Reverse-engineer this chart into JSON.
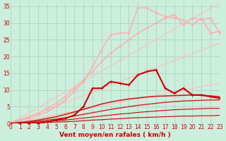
{
  "background_color": "#cceedd",
  "grid_color": "#aaccbb",
  "xlabel": "Vent moyen/en rafales ( km/h )",
  "xlabel_color": "#cc0000",
  "xlabel_fontsize": 6.5,
  "tick_color": "#cc0000",
  "tick_fontsize": 5.5,
  "xlim": [
    0,
    23
  ],
  "ylim": [
    0,
    36
  ],
  "yticks": [
    0,
    5,
    10,
    15,
    20,
    25,
    30,
    35
  ],
  "xticks": [
    0,
    1,
    2,
    3,
    4,
    5,
    6,
    7,
    8,
    9,
    10,
    11,
    12,
    13,
    14,
    15,
    16,
    17,
    18,
    19,
    20,
    21,
    22,
    23
  ],
  "series": [
    {
      "x": [
        0,
        1,
        2,
        3,
        4,
        5,
        6,
        7,
        8,
        9,
        10,
        11,
        12,
        13,
        14,
        15,
        16,
        17,
        18,
        19,
        20,
        21,
        22,
        23
      ],
      "y": [
        0,
        0.52,
        1.04,
        1.56,
        2.08,
        2.6,
        3.13,
        3.65,
        4.17,
        4.69,
        5.22,
        5.74,
        6.26,
        6.78,
        7.3,
        7.83,
        8.35,
        8.87,
        9.39,
        9.91,
        10.43,
        10.96,
        11.48,
        12.0
      ],
      "color": "#ffbbbb",
      "lw": 0.8,
      "marker": null,
      "ms": 0
    },
    {
      "x": [
        0,
        1,
        2,
        3,
        4,
        5,
        6,
        7,
        8,
        9,
        10,
        11,
        12,
        13,
        14,
        15,
        16,
        17,
        18,
        19,
        20,
        21,
        22,
        23
      ],
      "y": [
        0,
        1.04,
        2.08,
        3.13,
        4.17,
        5.22,
        6.26,
        7.3,
        8.35,
        9.39,
        10.43,
        11.48,
        12.52,
        13.57,
        14.61,
        15.65,
        16.7,
        17.74,
        18.78,
        19.83,
        20.87,
        21.91,
        22.96,
        24.0
      ],
      "color": "#ffbbbb",
      "lw": 0.8,
      "marker": null,
      "ms": 0
    },
    {
      "x": [
        0,
        1,
        2,
        3,
        4,
        5,
        6,
        7,
        8,
        9,
        10,
        11,
        12,
        13,
        14,
        15,
        16,
        17,
        18,
        19,
        20,
        21,
        22,
        23
      ],
      "y": [
        0,
        1.56,
        3.13,
        4.69,
        6.26,
        7.83,
        9.39,
        10.96,
        12.52,
        14.09,
        15.65,
        17.22,
        18.78,
        20.35,
        21.91,
        23.48,
        25.04,
        26.61,
        28.17,
        29.74,
        31.3,
        32.87,
        34.43,
        36.0
      ],
      "color": "#ffbbbb",
      "lw": 0.8,
      "marker": null,
      "ms": 0
    },
    {
      "x": [
        0,
        1,
        2,
        3,
        4,
        5,
        6,
        7,
        8,
        9,
        10,
        11,
        12,
        13,
        14,
        15,
        16,
        17,
        18,
        19,
        20,
        21,
        22,
        23
      ],
      "y": [
        0.5,
        1.0,
        1.5,
        2.5,
        3.5,
        5.0,
        7.0,
        9.5,
        12.5,
        17.0,
        22.0,
        26.5,
        27.0,
        27.0,
        34.5,
        34.5,
        33.0,
        32.0,
        31.5,
        31.0,
        29.5,
        31.5,
        27.0,
        27.5
      ],
      "color": "#ffaaaa",
      "lw": 1.0,
      "marker": "+",
      "ms": 3.0
    },
    {
      "x": [
        0,
        1,
        2,
        3,
        4,
        5,
        6,
        7,
        8,
        9,
        10,
        11,
        12,
        13,
        14,
        15,
        16,
        17,
        18,
        19,
        20,
        21,
        22,
        23
      ],
      "y": [
        0,
        1.0,
        2.0,
        3.0,
        4.5,
        6.0,
        8.0,
        10.5,
        13.0,
        15.5,
        18.5,
        21.0,
        23.0,
        25.0,
        27.0,
        28.5,
        30.0,
        31.5,
        32.5,
        29.5,
        31.5,
        31.0,
        31.5,
        27.0
      ],
      "color": "#ffaaaa",
      "lw": 1.0,
      "marker": "+",
      "ms": 3.0
    },
    {
      "x": [
        0,
        1,
        2,
        3,
        4,
        5,
        6,
        7,
        8,
        9,
        10,
        11,
        12,
        13,
        14,
        15,
        16,
        17,
        18,
        19,
        20,
        21,
        22,
        23
      ],
      "y": [
        0,
        0.3,
        0.6,
        1.0,
        1.5,
        2.0,
        2.7,
        3.4,
        4.2,
        5.0,
        5.8,
        6.4,
        6.9,
        7.3,
        7.6,
        7.9,
        8.1,
        8.2,
        8.3,
        8.4,
        8.5,
        8.4,
        8.2,
        8.0
      ],
      "color": "#cc2222",
      "lw": 1.2,
      "marker": null,
      "ms": 0
    },
    {
      "x": [
        0,
        1,
        2,
        3,
        4,
        5,
        6,
        7,
        8,
        9,
        10,
        11,
        12,
        13,
        14,
        15,
        16,
        17,
        18,
        19,
        20,
        21,
        22,
        23
      ],
      "y": [
        0,
        0.2,
        0.4,
        0.7,
        1.0,
        1.3,
        1.7,
        2.2,
        2.7,
        3.2,
        3.7,
        4.2,
        4.6,
        5.0,
        5.4,
        5.7,
        6.0,
        6.3,
        6.5,
        6.7,
        6.8,
        6.9,
        7.0,
        7.0
      ],
      "color": "#cc2222",
      "lw": 1.0,
      "marker": null,
      "ms": 0
    },
    {
      "x": [
        0,
        1,
        2,
        3,
        4,
        5,
        6,
        7,
        8,
        9,
        10,
        11,
        12,
        13,
        14,
        15,
        16,
        17,
        18,
        19,
        20,
        21,
        22,
        23
      ],
      "y": [
        0,
        0.1,
        0.2,
        0.4,
        0.6,
        0.8,
        1.0,
        1.3,
        1.6,
        1.9,
        2.2,
        2.5,
        2.8,
        3.0,
        3.3,
        3.5,
        3.7,
        3.9,
        4.1,
        4.2,
        4.3,
        4.4,
        4.5,
        4.5
      ],
      "color": "#cc0000",
      "lw": 0.8,
      "marker": null,
      "ms": 0
    },
    {
      "x": [
        0,
        1,
        2,
        3,
        4,
        5,
        6,
        7,
        8,
        9,
        10,
        11,
        12,
        13,
        14,
        15,
        16,
        17,
        18,
        19,
        20,
        21,
        22,
        23
      ],
      "y": [
        0,
        0.05,
        0.1,
        0.2,
        0.3,
        0.4,
        0.5,
        0.6,
        0.8,
        1.0,
        1.1,
        1.3,
        1.4,
        1.6,
        1.7,
        1.8,
        1.9,
        2.0,
        2.1,
        2.2,
        2.2,
        2.3,
        2.3,
        2.4
      ],
      "color": "#cc0000",
      "lw": 0.8,
      "marker": null,
      "ms": 0
    },
    {
      "x": [
        0,
        1,
        2,
        3,
        4,
        5,
        6,
        7,
        8,
        9,
        10,
        11,
        12,
        13,
        14,
        15,
        16,
        17,
        18,
        19,
        20,
        21,
        22,
        23
      ],
      "y": [
        0,
        0,
        0,
        0,
        0.5,
        1.0,
        1.5,
        2.5,
        5.0,
        10.5,
        10.5,
        12.5,
        12.0,
        11.5,
        14.5,
        15.5,
        16.0,
        10.5,
        9.0,
        10.5,
        8.5,
        8.5,
        8.0,
        7.5
      ],
      "color": "#cc0000",
      "lw": 1.5,
      "marker": "+",
      "ms": 3.5
    }
  ]
}
